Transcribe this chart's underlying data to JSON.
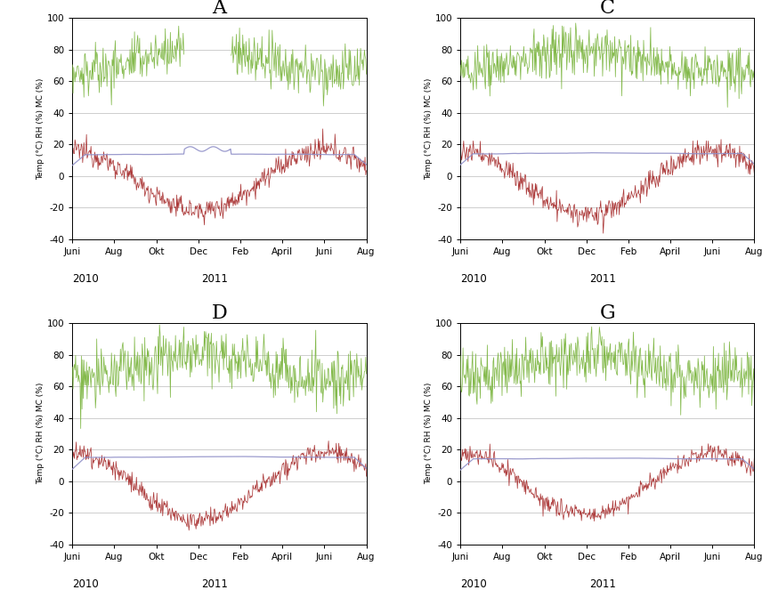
{
  "panels": [
    [
      "A",
      "C"
    ],
    [
      "D",
      "G"
    ]
  ],
  "ylabel": "Temp (°C) RH (%) MC (%)",
  "ylim": [
    -40,
    100
  ],
  "yticks": [
    -40,
    -20,
    0,
    20,
    40,
    60,
    80,
    100
  ],
  "x_tick_labels": [
    "Juni",
    "Aug",
    "Okt",
    "Dec",
    "Feb",
    "April",
    "Juni",
    "Aug"
  ],
  "colors": {
    "green": "#7db642",
    "red": "#a83030",
    "blue": "#9090c8"
  },
  "n_points": 460,
  "background_color": "#ffffff",
  "title_fontsize": 16,
  "axis_fontsize": 7.5,
  "label_fontsize": 6.5
}
